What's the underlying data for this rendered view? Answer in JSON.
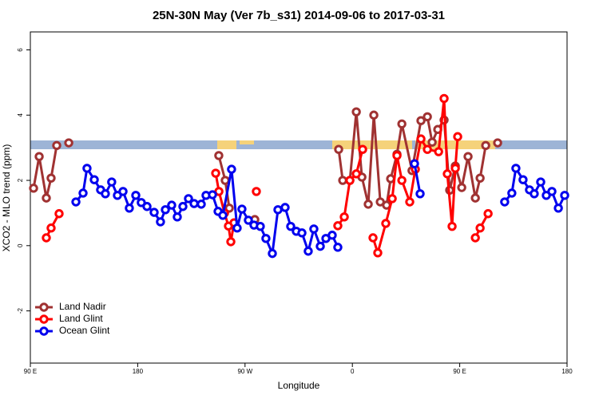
{
  "chart_data": {
    "type": "line",
    "title": "25N-30N May (Ver 7b_s31)   2014-09-06 to 2017-03-31",
    "xlabel": "Longitude",
    "ylabel": "XCO2 - MLO trend (ppm)",
    "xlim": [
      90,
      540
    ],
    "ylim": [
      -3.6,
      6.55
    ],
    "xticks": [
      {
        "value": 90,
        "label": "90 E"
      },
      180,
      {
        "value": 270,
        "label": "90 W"
      },
      {
        "value": 360,
        "label": "0"
      },
      {
        "value": 450,
        "label": "90 E"
      },
      {
        "value": 540,
        "label": "180"
      }
    ],
    "yticks": [
      -2,
      0,
      2,
      4,
      6
    ],
    "legend": "bottom-left",
    "series": [
      {
        "name": "Land Nadir",
        "color": "#a03232",
        "x": [
          92.7,
          97.4,
          103.4,
          107.4,
          112.1,
          null,
          122.2,
          null,
          248,
          253.4,
          256.8,
          null,
          278.2,
          null,
          348.5,
          351.9,
          357.9,
          363.3,
          368,
          373.3,
          378,
          383.4,
          388.7,
          392.1,
          397.4,
          401.5,
          410,
          417.5,
          422.9,
          426.9,
          431.6,
          436.9,
          441.6,
          446.3,
          451.7,
          457,
          463.1,
          467.1,
          471.8,
          null,
          481.8
        ],
        "values": [
          1.76,
          2.73,
          1.46,
          2.07,
          3.07,
          null,
          3.15,
          null,
          2.76,
          2.0,
          1.15,
          null,
          0.8,
          null,
          2.95,
          2.0,
          2.0,
          4.1,
          2.1,
          1.27,
          4.0,
          1.34,
          1.24,
          2.05,
          2.8,
          3.73,
          2.3,
          3.83,
          3.95,
          3.17,
          3.56,
          3.85,
          1.7,
          2.44,
          1.78,
          2.73,
          1.46,
          2.07,
          3.07,
          null,
          3.15
        ]
      },
      {
        "name": "Land Glint",
        "color": "#ff0000",
        "x": [
          103.4,
          107.4,
          114.1,
          null,
          245.4,
          248.1,
          252.8,
          256.1,
          258.1,
          260.8,
          null,
          279.5,
          null,
          347.8,
          353.2,
          357.9,
          363.3,
          368.6,
          null,
          377.3,
          381.3,
          388,
          393.4,
          397.4,
          401.5,
          408.1,
          412.8,
          417.5,
          422.9,
          432.3,
          436.9,
          439.6,
          443.6,
          446.3,
          448.3,
          null,
          463.1,
          467.1,
          473.8
        ],
        "values": [
          0.24,
          0.54,
          0.98,
          null,
          2.22,
          1.66,
          1.0,
          0.6,
          0.12,
          0.7,
          null,
          1.66,
          null,
          0.61,
          0.88,
          2.0,
          2.2,
          2.95,
          null,
          0.24,
          -0.22,
          0.68,
          1.44,
          2.76,
          2.0,
          1.34,
          2.34,
          3.27,
          2.95,
          2.88,
          4.51,
          2.2,
          0.59,
          2.37,
          3.34,
          null,
          0.24,
          0.54,
          0.98
        ]
      },
      {
        "name": "Ocean Glint",
        "color": "#0000ee",
        "x": [
          128.2,
          134.2,
          137.5,
          143.6,
          148.9,
          152.9,
          158.2,
          163,
          167.7,
          173,
          178.4,
          183,
          187.8,
          193.8,
          199.1,
          203.2,
          208.5,
          213.2,
          217.9,
          222.6,
          227.3,
          233.3,
          237.3,
          242.7,
          247.4,
          251.4,
          258.7,
          263.4,
          267.4,
          272.8,
          277.5,
          282.8,
          287.5,
          292.9,
          297.6,
          303.6,
          308.3,
          313,
          317.7,
          323,
          327.7,
          333.1,
          337.8,
          343.1,
          347.8,
          null,
          412.1,
          416.8,
          null,
          487.7,
          493.7,
          497.1,
          503.1,
          508.5,
          512.5,
          517.9,
          522.6,
          527.3,
          532.7,
          538
        ],
        "values": [
          1.34,
          1.61,
          2.37,
          2.02,
          1.71,
          1.59,
          1.95,
          1.54,
          1.66,
          1.15,
          1.54,
          1.32,
          1.2,
          1.02,
          0.73,
          1.1,
          1.24,
          0.88,
          1.2,
          1.44,
          1.29,
          1.27,
          1.54,
          1.56,
          1.05,
          0.93,
          2.34,
          0.54,
          1.12,
          0.78,
          0.63,
          0.59,
          0.22,
          -0.24,
          1.1,
          1.17,
          0.59,
          0.44,
          0.39,
          -0.17,
          0.51,
          -0.02,
          0.22,
          0.32,
          -0.05,
          null,
          2.51,
          1.59,
          null,
          1.34,
          1.61,
          2.37,
          2.02,
          1.71,
          1.59,
          1.95,
          1.54,
          1.66,
          1.15,
          1.54
        ]
      }
    ]
  }
}
